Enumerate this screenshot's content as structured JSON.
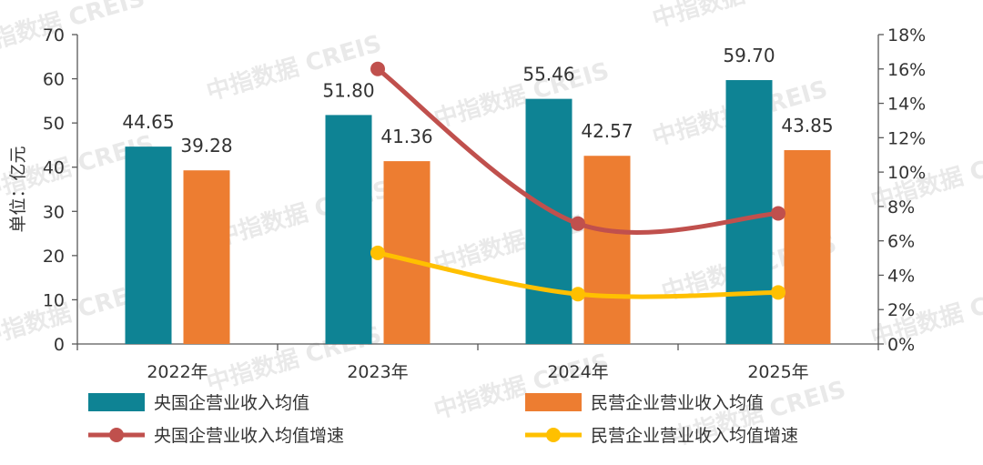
{
  "watermark": "中指数据 CREIS",
  "chart_data": {
    "type": "bar",
    "categories": [
      "2022年",
      "2023年",
      "2024年",
      "2025年"
    ],
    "ylabel": "单位：亿元",
    "ylim": [
      0,
      70
    ],
    "yticks": [
      0,
      10,
      20,
      30,
      40,
      50,
      60,
      70
    ],
    "y2lim": [
      0,
      18
    ],
    "y2ticks": [
      "0%",
      "2%",
      "4%",
      "6%",
      "8%",
      "10%",
      "12%",
      "14%",
      "16%",
      "18%"
    ],
    "grid": false,
    "legend_position": "bottom",
    "series": [
      {
        "name": "央国企营业收入均值",
        "kind": "bar",
        "axis": "left",
        "color": "#0e8394",
        "values": [
          44.65,
          51.8,
          55.46,
          59.7
        ],
        "labels": [
          "44.65",
          "51.80",
          "55.46",
          "59.70"
        ]
      },
      {
        "name": "民营企业营业收入均值",
        "kind": "bar",
        "axis": "left",
        "color": "#ed7d31",
        "values": [
          39.28,
          41.36,
          42.57,
          43.85
        ],
        "labels": [
          "39.28",
          "41.36",
          "42.57",
          "43.85"
        ]
      },
      {
        "name": "央国企营业收入均值增速",
        "kind": "line",
        "axis": "right",
        "color": "#c0504d",
        "values": [
          null,
          16.0,
          7.0,
          7.6
        ]
      },
      {
        "name": "民营企业营业收入均值增速",
        "kind": "line",
        "axis": "right",
        "color": "#ffc000",
        "values": [
          null,
          5.3,
          2.9,
          3.0
        ]
      }
    ]
  }
}
